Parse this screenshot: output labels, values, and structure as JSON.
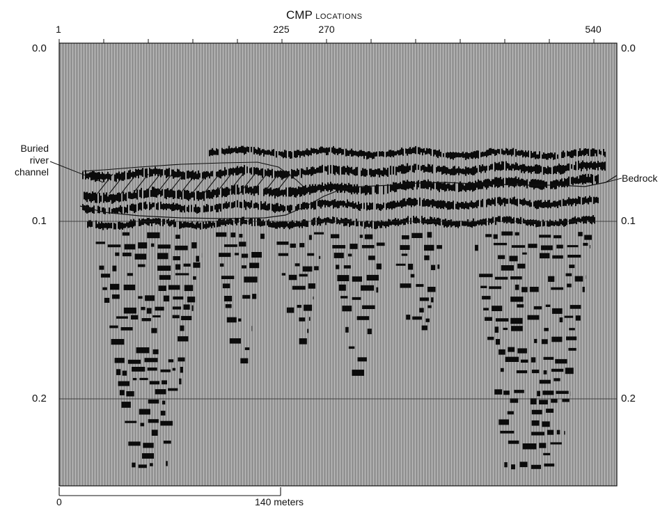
{
  "header": {
    "title_main": "CMP",
    "title_sub": "LOCATIONS"
  },
  "cmp_ticks": [
    "1",
    "225",
    "270",
    "540"
  ],
  "time_axis": {
    "left_labels": [
      "0.0",
      "0.1",
      "0.2"
    ],
    "right_labels": [
      "0.0",
      "0.1",
      "0.2"
    ]
  },
  "annotations": {
    "channel_line1": "Buried",
    "channel_line2": "river",
    "channel_line3": "channel",
    "bedrock": "Bedrock"
  },
  "scale_bar": {
    "start_label": "0",
    "end_label": "140 meters"
  },
  "colors": {
    "background": "#9a9a9a",
    "reflector": "#0b0b0b",
    "line": "#111111"
  }
}
